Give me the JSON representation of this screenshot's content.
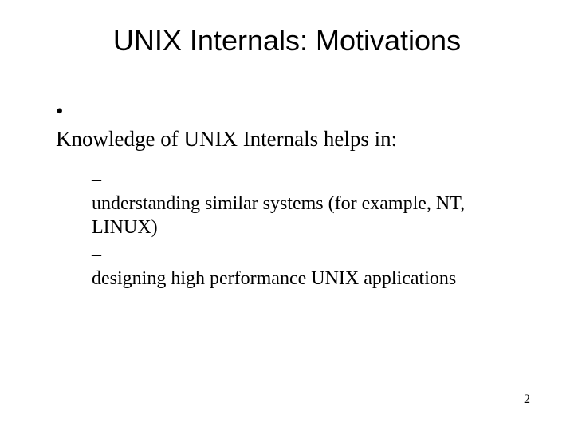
{
  "title": "UNIX Internals: Motivations",
  "bullets": {
    "level1": [
      "Knowledge of UNIX Internals helps in:"
    ],
    "level2": [
      "understanding similar systems (for example, NT, LINUX)",
      "designing high performance UNIX applications"
    ]
  },
  "pageNumber": "2",
  "styling": {
    "background_color": "#ffffff",
    "text_color": "#000000",
    "title_font": "Arial",
    "title_fontsize": 36,
    "body_font": "Times New Roman",
    "level1_fontsize": 27,
    "level2_fontsize": 24,
    "page_number_fontsize": 16,
    "level1_bullet": "•",
    "level2_bullet": "–"
  }
}
